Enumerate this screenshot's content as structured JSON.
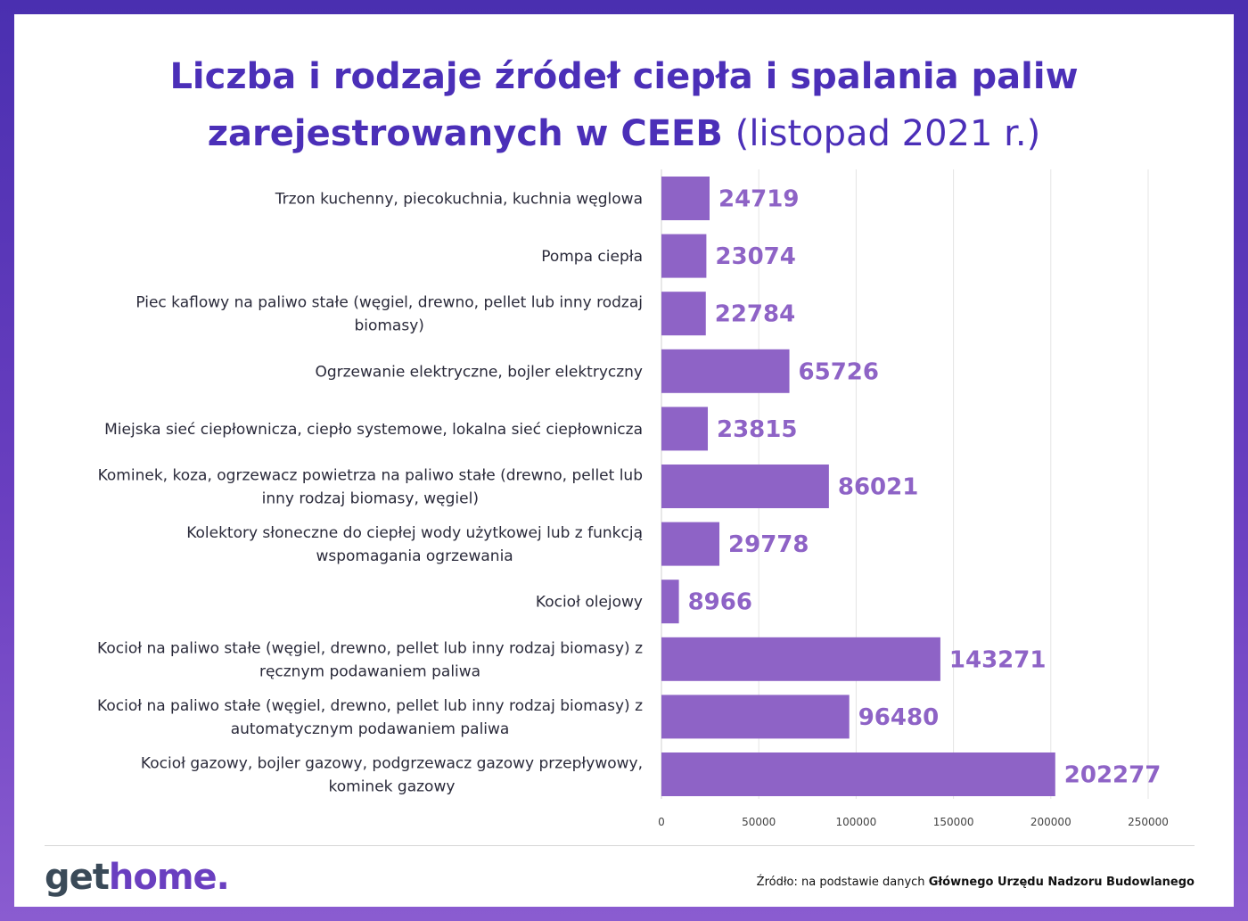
{
  "title": {
    "line1": "Liczba i rodzaje źródeł ciepła i spalania paliw",
    "line2_bold": "zarejestrowanych w CEEB",
    "line2_normal": "(listopad 2021 r.)"
  },
  "chart_data": {
    "type": "bar",
    "orientation": "horizontal",
    "title": "Liczba i rodzaje źródeł ciepła i spalania paliw zarejestrowanych w CEEB (listopad 2021 r.)",
    "categories": [
      "Trzon kuchenny, piecokuchnia, kuchnia węglowa",
      "Pompa ciepła",
      "Piec kaflowy na paliwo stałe (węgiel, drewno, pellet lub inny rodzaj biomasy)",
      "Ogrzewanie elektryczne, bojler elektryczny",
      "Miejska sieć ciepłownicza, ciepło systemowe, lokalna sieć ciepłownicza",
      "Kominek, koza, ogrzewacz powietrza na paliwo stałe (drewno, pellet lub inny rodzaj biomasy, węgiel)",
      "Kolektory słoneczne do ciepłej wody użytkowej lub z funkcją wspomagania ogrzewania",
      "Kocioł olejowy",
      "Kocioł na paliwo stałe (węgiel, drewno, pellet lub inny rodzaj biomasy) z ręcznym podawaniem paliwa",
      "Kocioł na paliwo stałe (węgiel, drewno, pellet lub inny rodzaj biomasy) z automatycznym podawaniem paliwa",
      "Kocioł gazowy, bojler gazowy, podgrzewacz gazowy przepływowy, kominek gazowy"
    ],
    "category_lines": [
      [
        "Trzon kuchenny, piecokuchnia, kuchnia węglowa"
      ],
      [
        "Pompa ciepła"
      ],
      [
        "Piec kaflowy na paliwo stałe (węgiel, drewno, pellet lub inny rodzaj",
        "biomasy)"
      ],
      [
        "Ogrzewanie elektryczne, bojler elektryczny"
      ],
      [
        "Miejska sieć ciepłownicza, ciepło systemowe, lokalna sieć ciepłownicza"
      ],
      [
        "Kominek, koza, ogrzewacz powietrza na paliwo stałe (drewno, pellet lub",
        "inny rodzaj biomasy, węgiel)"
      ],
      [
        "Kolektory słoneczne do ciepłej wody użytkowej lub z funkcją",
        "wspomagania ogrzewania"
      ],
      [
        "Kocioł olejowy"
      ],
      [
        "Kocioł na paliwo stałe (węgiel, drewno, pellet lub inny rodzaj biomasy) z",
        "ręcznym podawaniem paliwa"
      ],
      [
        "Kocioł na paliwo stałe (węgiel, drewno, pellet lub inny rodzaj biomasy) z",
        "automatycznym podawaniem paliwa"
      ],
      [
        "Kocioł gazowy, bojler gazowy, podgrzewacz gazowy przepływowy,",
        "kominek gazowy"
      ]
    ],
    "values": [
      24719,
      23074,
      22784,
      65726,
      23815,
      86021,
      29778,
      8966,
      143271,
      96480,
      202277
    ],
    "xlim": [
      0,
      250000
    ],
    "xticks": [
      0,
      50000,
      100000,
      150000,
      200000,
      250000
    ],
    "xlabel": "",
    "ylabel": "",
    "grid": true,
    "legend": false,
    "bar_color": "#8e63c6",
    "label_color": "#8e63c6"
  },
  "footer": {
    "logo_part1": "get",
    "logo_part2": "home.",
    "source_prefix": "Źródło: na podstawie danych",
    "source_bold": "Głównego Urzędu Nadzoru Budowlanego"
  },
  "colors": {
    "title": "#4b2fb8",
    "frame": "#4a2fb0",
    "logo_dark": "#3a4a58",
    "logo_accent": "#6a3fc0"
  }
}
